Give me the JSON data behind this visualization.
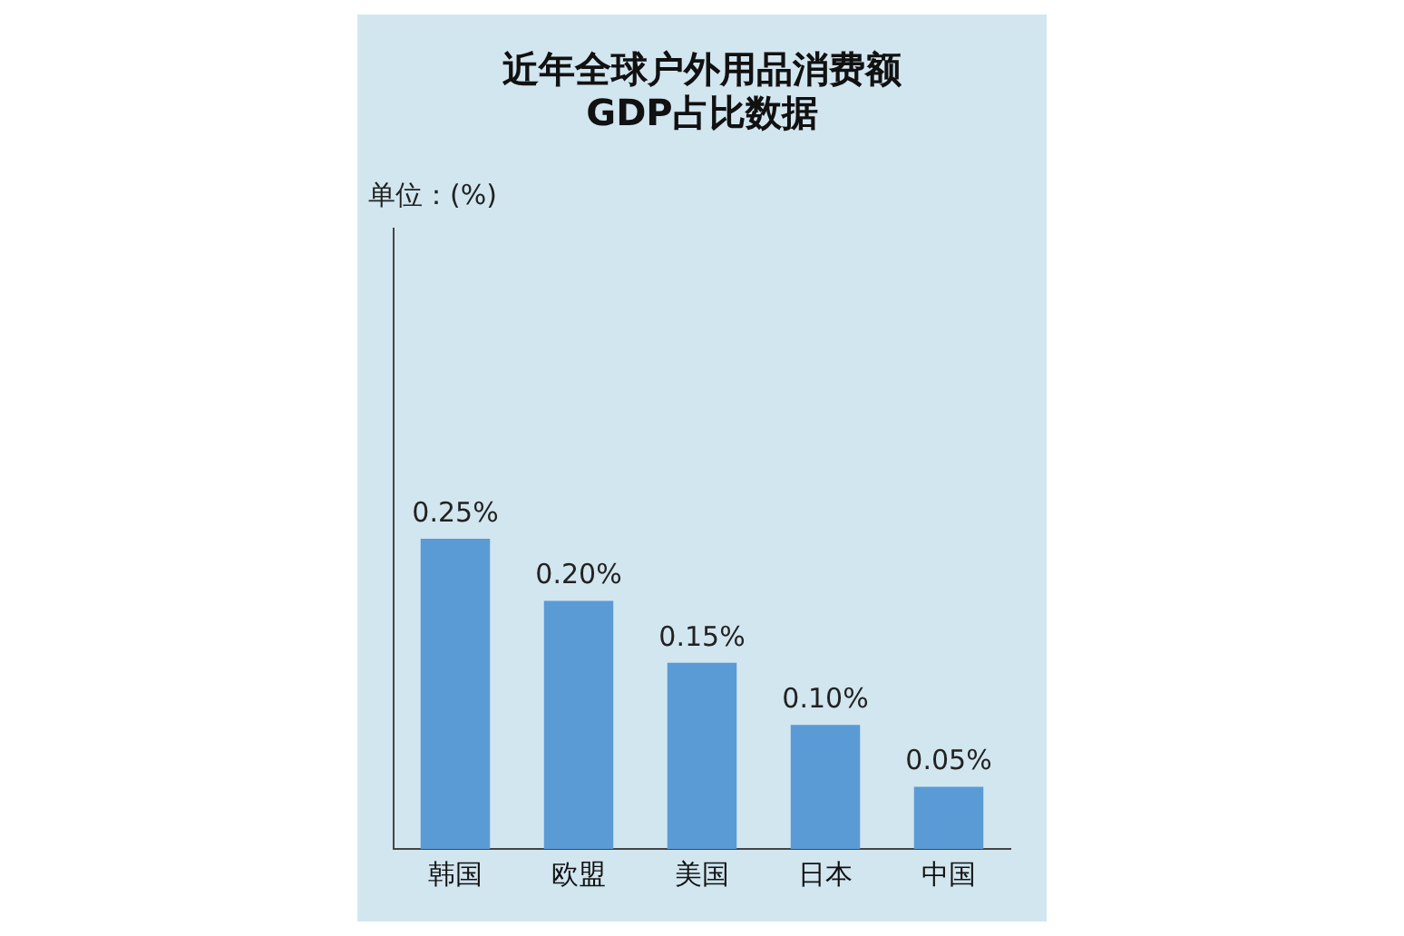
{
  "chart_data": {
    "type": "bar",
    "title": "近年全球户外用品消费额\nGDP占比数据",
    "ylabel": "单位：(%)",
    "categories": [
      "韩国",
      "欧盟",
      "美国",
      "日本",
      "中国"
    ],
    "values": [
      0.25,
      0.2,
      0.15,
      0.1,
      0.05
    ],
    "value_labels": [
      "0.25%",
      "0.20%",
      "0.15%",
      "0.10%",
      "0.05%"
    ],
    "color": "#5b9bd5",
    "ylim": [
      0,
      0.5
    ],
    "grid": false,
    "legend": false
  }
}
